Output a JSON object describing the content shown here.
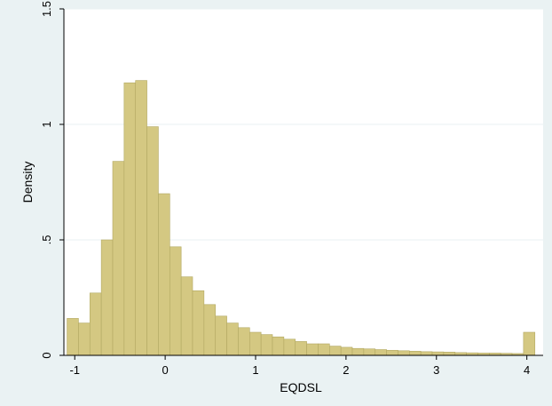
{
  "chart_data": {
    "type": "bar",
    "title": "",
    "xlabel": "EQDSL",
    "ylabel": "Density",
    "xlim": [
      -1.12,
      4.18
    ],
    "ylim": [
      0,
      1.5
    ],
    "x_ticks": [
      -1,
      0,
      1,
      2,
      3,
      4
    ],
    "x_tick_labels": [
      "-1",
      "0",
      "1",
      "2",
      "3",
      "4"
    ],
    "y_ticks": [
      0,
      0.5,
      1,
      1.5
    ],
    "y_tick_labels": [
      "0",
      ".5",
      "1",
      "1.5"
    ],
    "grid": true,
    "legend": "none",
    "bar_fill": "#d4c882",
    "bar_stroke": "#b2a862",
    "plot_background": "#ffffff",
    "page_background": "#eaf2f3",
    "grid_color": "#eaf2f3",
    "bin_width": 0.1262,
    "bin_starts": [
      -1.085,
      -0.9588,
      -0.8326,
      -0.7064,
      -0.5802,
      -0.454,
      -0.3278,
      -0.2016,
      -0.0754,
      0.0508,
      0.177,
      0.3032,
      0.4294,
      0.5556,
      0.6818,
      0.808,
      0.9342,
      1.0604,
      1.1866,
      1.3128,
      1.439,
      1.5652,
      1.6914,
      1.8176,
      1.9438,
      2.07,
      2.1962,
      2.3224,
      2.4486,
      2.5748,
      2.701,
      2.8272,
      2.9534,
      3.0796,
      3.2058,
      3.332,
      3.4582,
      3.5844,
      3.7106,
      3.8368,
      3.963
    ],
    "values": [
      0.16,
      0.14,
      0.27,
      0.5,
      0.84,
      1.18,
      1.19,
      0.99,
      0.7,
      0.47,
      0.34,
      0.28,
      0.22,
      0.17,
      0.14,
      0.12,
      0.1,
      0.09,
      0.08,
      0.07,
      0.06,
      0.05,
      0.05,
      0.04,
      0.035,
      0.03,
      0.028,
      0.025,
      0.022,
      0.02,
      0.018,
      0.016,
      0.015,
      0.014,
      0.012,
      0.011,
      0.01,
      0.01,
      0.009,
      0.008,
      0.1
    ]
  }
}
